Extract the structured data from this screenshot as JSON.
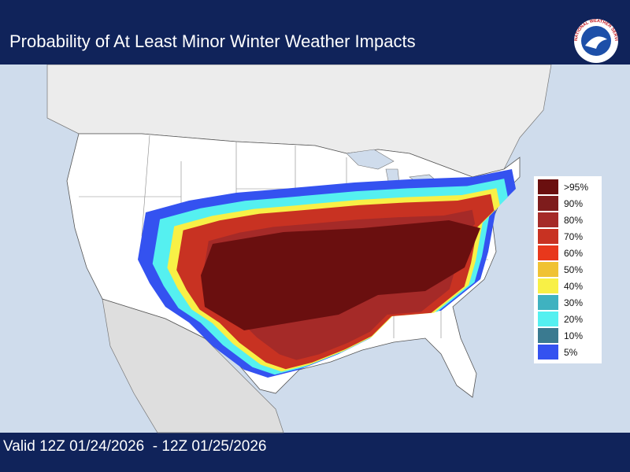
{
  "header": {
    "title": "Probability of At Least Minor Winter Weather Impacts",
    "logo_text": "NATIONAL WEATHER SERVICE"
  },
  "legend": {
    "items": [
      {
        "label": ">95%",
        "color": "#6a0f0f"
      },
      {
        "label": "90%",
        "color": "#7e1c1c"
      },
      {
        "label": "80%",
        "color": "#a52a28"
      },
      {
        "label": "70%",
        "color": "#c83222"
      },
      {
        "label": "60%",
        "color": "#e8381c"
      },
      {
        "label": "50%",
        "color": "#f0c233"
      },
      {
        "label": "40%",
        "color": "#f8f046"
      },
      {
        "label": "30%",
        "color": "#3fb2c0"
      },
      {
        "label": "20%",
        "color": "#55f0f0"
      },
      {
        "label": "10%",
        "color": "#3a7a90"
      },
      {
        "label": "5%",
        "color": "#3452f0"
      }
    ]
  },
  "footer": {
    "valid": "Valid 12Z 01/24/2026  - 12Z 01/25/2026"
  }
}
